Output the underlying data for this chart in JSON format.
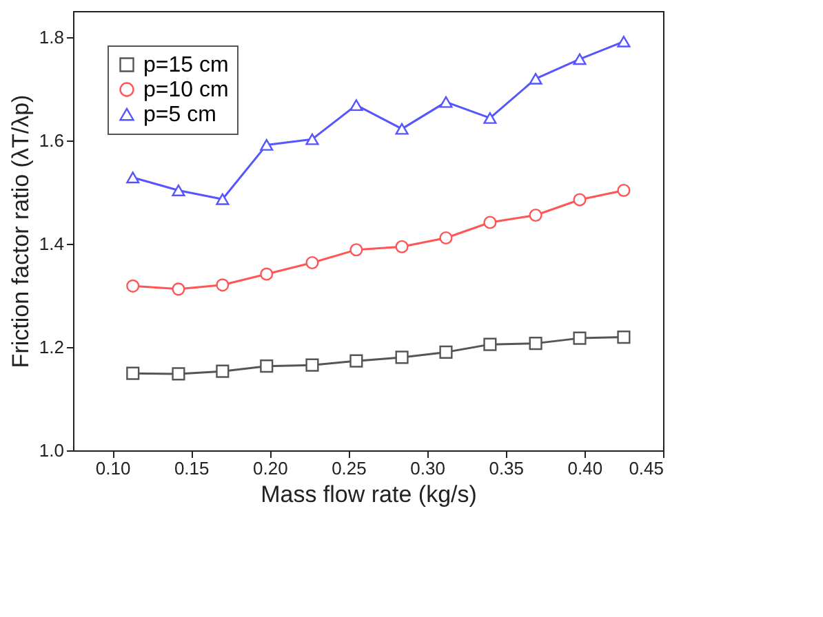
{
  "chart_data": {
    "type": "line",
    "xlabel": "Mass flow rate (kg/s)",
    "ylabel": "Friction factor ratio (λT/λp)",
    "x": [
      0.113,
      0.142,
      0.17,
      0.198,
      0.227,
      0.255,
      0.284,
      0.312,
      0.34,
      0.369,
      0.397,
      0.425
    ],
    "series": [
      {
        "name": "p=15 cm",
        "color": "#555555",
        "marker": "square",
        "values": [
          1.149,
          1.148,
          1.153,
          1.163,
          1.165,
          1.173,
          1.18,
          1.19,
          1.205,
          1.207,
          1.217,
          1.219
        ]
      },
      {
        "name": "p=10 cm",
        "color": "#ff5555",
        "marker": "circle",
        "values": [
          1.318,
          1.312,
          1.32,
          1.341,
          1.363,
          1.388,
          1.394,
          1.411,
          1.441,
          1.455,
          1.485,
          1.503
        ]
      },
      {
        "name": "p=5 cm",
        "color": "#5555ff",
        "marker": "triangle",
        "values": [
          1.528,
          1.503,
          1.486,
          1.591,
          1.602,
          1.668,
          1.622,
          1.674,
          1.643,
          1.719,
          1.757,
          1.791
        ]
      }
    ],
    "xlim": [
      0.075,
      0.45
    ],
    "xticks": [
      {
        "value": 0.1,
        "label": "0.10"
      },
      {
        "value": 0.15,
        "label": "0.15"
      },
      {
        "value": 0.2,
        "label": "0.20"
      },
      {
        "value": 0.25,
        "label": "0.25"
      },
      {
        "value": 0.3,
        "label": "0.30"
      },
      {
        "value": 0.35,
        "label": "0.35"
      },
      {
        "value": 0.4,
        "label": "0.40"
      },
      {
        "value": 0.45,
        "label": "0.45"
      }
    ],
    "ylim": [
      1.0,
      1.85
    ],
    "yticks": [
      {
        "value": 1.0,
        "label": "1.0"
      },
      1.2,
      1.4,
      1.6,
      1.8
    ],
    "grid": false,
    "legend": "top left",
    "line_style": "solid"
  }
}
